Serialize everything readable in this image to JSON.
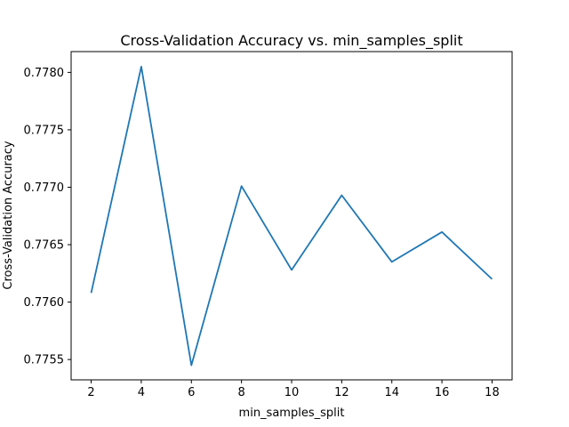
{
  "chart_data": {
    "type": "line",
    "title": "Cross-Validation Accuracy vs. min_samples_split",
    "xlabel": "min_samples_split",
    "ylabel": "Cross-Validation Accuracy",
    "x": [
      2,
      4,
      6,
      8,
      10,
      12,
      14,
      16,
      18
    ],
    "series": [
      {
        "values": [
          0.77608,
          0.77805,
          0.77545,
          0.77701,
          0.77628,
          0.77693,
          0.77635,
          0.77661,
          0.7762
        ]
      }
    ],
    "xticks": [
      2,
      4,
      6,
      8,
      10,
      12,
      14,
      16,
      18
    ],
    "yticks": [
      "0.7755",
      "0.7760",
      "0.7765",
      "0.7770",
      "0.7775",
      "0.7780"
    ],
    "xlim": [
      1.2,
      18.8
    ],
    "ylim": [
      0.775323,
      0.778181
    ],
    "grid": false,
    "line_color": "#1f77b4"
  }
}
